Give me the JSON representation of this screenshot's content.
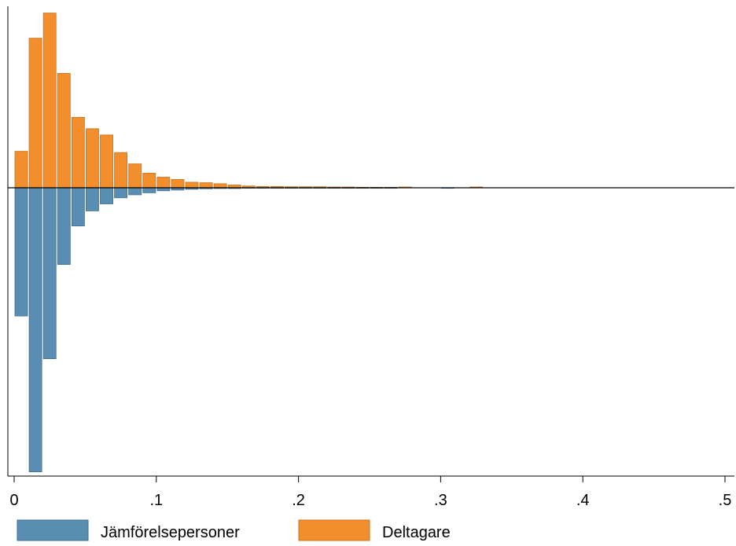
{
  "chart_data": {
    "type": "bar",
    "orientation": "mirrored-histogram",
    "title": "",
    "xlabel": "",
    "ylabel": "",
    "xlim": [
      0,
      0.5
    ],
    "bin_width": 0.01,
    "x_ticks": [
      {
        "value": 0,
        "label": "0"
      },
      {
        "value": 0.1,
        "label": ".1"
      },
      {
        "value": 0.2,
        "label": ".2"
      },
      {
        "value": 0.3,
        "label": ".3"
      },
      {
        "value": 0.4,
        "label": ".4"
      },
      {
        "value": 0.5,
        "label": ".5"
      }
    ],
    "grid": false,
    "legend_position": "bottom",
    "series": [
      {
        "name": "Deltagare",
        "direction": "up",
        "color": "#f28e2b",
        "edge": "#c8741f",
        "bins": [
          {
            "x": 0.0,
            "v": 0.145
          },
          {
            "x": 0.01,
            "v": 0.595
          },
          {
            "x": 0.02,
            "v": 0.695
          },
          {
            "x": 0.03,
            "v": 0.455
          },
          {
            "x": 0.04,
            "v": 0.28
          },
          {
            "x": 0.05,
            "v": 0.235
          },
          {
            "x": 0.06,
            "v": 0.21
          },
          {
            "x": 0.07,
            "v": 0.14
          },
          {
            "x": 0.08,
            "v": 0.095
          },
          {
            "x": 0.09,
            "v": 0.058
          },
          {
            "x": 0.1,
            "v": 0.042
          },
          {
            "x": 0.11,
            "v": 0.033
          },
          {
            "x": 0.12,
            "v": 0.022
          },
          {
            "x": 0.13,
            "v": 0.02
          },
          {
            "x": 0.14,
            "v": 0.016
          },
          {
            "x": 0.15,
            "v": 0.011
          },
          {
            "x": 0.16,
            "v": 0.007
          },
          {
            "x": 0.17,
            "v": 0.005
          },
          {
            "x": 0.18,
            "v": 0.005
          },
          {
            "x": 0.19,
            "v": 0.004
          },
          {
            "x": 0.2,
            "v": 0.004
          },
          {
            "x": 0.21,
            "v": 0.004
          },
          {
            "x": 0.22,
            "v": 0.003
          },
          {
            "x": 0.23,
            "v": 0.003
          },
          {
            "x": 0.24,
            "v": 0.002
          },
          {
            "x": 0.25,
            "v": 0.002
          },
          {
            "x": 0.26,
            "v": 0.002
          },
          {
            "x": 0.27,
            "v": 0.003
          },
          {
            "x": 0.32,
            "v": 0.003
          }
        ]
      },
      {
        "name": "Jämförelsepersoner",
        "direction": "down",
        "color": "#5a8db2",
        "edge": "#3e6f95",
        "bins": [
          {
            "x": 0.0,
            "v": 0.51
          },
          {
            "x": 0.01,
            "v": 1.13
          },
          {
            "x": 0.02,
            "v": 0.68
          },
          {
            "x": 0.03,
            "v": 0.305
          },
          {
            "x": 0.04,
            "v": 0.152
          },
          {
            "x": 0.05,
            "v": 0.092
          },
          {
            "x": 0.06,
            "v": 0.064
          },
          {
            "x": 0.07,
            "v": 0.04
          },
          {
            "x": 0.08,
            "v": 0.028
          },
          {
            "x": 0.09,
            "v": 0.02
          },
          {
            "x": 0.1,
            "v": 0.012
          },
          {
            "x": 0.11,
            "v": 0.009
          },
          {
            "x": 0.12,
            "v": 0.006
          },
          {
            "x": 0.13,
            "v": 0.004
          },
          {
            "x": 0.14,
            "v": 0.003
          },
          {
            "x": 0.15,
            "v": 0.003
          },
          {
            "x": 0.16,
            "v": 0.002
          },
          {
            "x": 0.17,
            "v": 0.002
          },
          {
            "x": 0.18,
            "v": 0.002
          },
          {
            "x": 0.19,
            "v": 0.002
          },
          {
            "x": 0.2,
            "v": 0.002
          },
          {
            "x": 0.21,
            "v": 0.002
          },
          {
            "x": 0.22,
            "v": 0.002
          },
          {
            "x": 0.23,
            "v": 0.002
          },
          {
            "x": 0.24,
            "v": 0.002
          },
          {
            "x": 0.25,
            "v": 0.002
          },
          {
            "x": 0.26,
            "v": 0.002
          },
          {
            "x": 0.3,
            "v": 0.002
          }
        ]
      }
    ],
    "legend": [
      {
        "label": "Jämförelsepersoner",
        "color": "#5a8db2",
        "edge": "#3e6f95"
      },
      {
        "label": "Deltagare",
        "color": "#f28e2b",
        "edge": "#c8741f"
      }
    ]
  }
}
